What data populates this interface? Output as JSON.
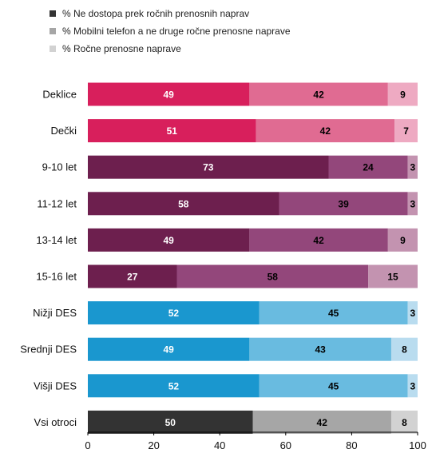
{
  "chart_data": {
    "type": "bar",
    "orientation": "horizontal",
    "stacked": true,
    "categories": [
      "Deklice",
      "Dečki",
      "9-10 let",
      "11-12 let",
      "13-14 let",
      "15-16 let",
      "Nižji DES",
      "Srednji DES",
      "Višji DES",
      "Vsi otroci"
    ],
    "series": [
      {
        "name": "% Ne dostopa prek ročnih prenosnih naprav",
        "values": [
          49,
          51,
          73,
          58,
          49,
          27,
          52,
          49,
          52,
          50
        ]
      },
      {
        "name": "% Mobilni telefon a ne druge ročne prenosne naprave",
        "values": [
          42,
          42,
          24,
          39,
          42,
          58,
          45,
          43,
          45,
          42
        ]
      },
      {
        "name": "% Ročne prenosne naprave",
        "values": [
          9,
          7,
          3,
          3,
          9,
          15,
          3,
          8,
          3,
          8
        ]
      }
    ],
    "xlim": [
      0,
      100
    ],
    "xticks": [
      0,
      20,
      40,
      60,
      80,
      100
    ],
    "grid": false,
    "legend_position": "top-left",
    "group_colors": [
      [
        "#d81f5c",
        "#e06b92",
        "#eeaac2"
      ],
      [
        "#d81f5c",
        "#e06b92",
        "#eeaac2"
      ],
      [
        "#6d1f4e",
        "#93477b",
        "#c393b0"
      ],
      [
        "#6d1f4e",
        "#93477b",
        "#c393b0"
      ],
      [
        "#6d1f4e",
        "#93477b",
        "#c393b0"
      ],
      [
        "#6d1f4e",
        "#93477b",
        "#c393b0"
      ],
      [
        "#1a97cf",
        "#69bbe0",
        "#b9dcef"
      ],
      [
        "#1a97cf",
        "#69bbe0",
        "#b9dcef"
      ],
      [
        "#1a97cf",
        "#69bbe0",
        "#b9dcef"
      ],
      [
        "#333333",
        "#a6a6a6",
        "#d2d2d2"
      ]
    ],
    "legend_colors": [
      "#333333",
      "#a6a6a6",
      "#d2d2d2"
    ],
    "label_colors": [
      "#ffffff",
      "#000000",
      "#000000"
    ]
  }
}
